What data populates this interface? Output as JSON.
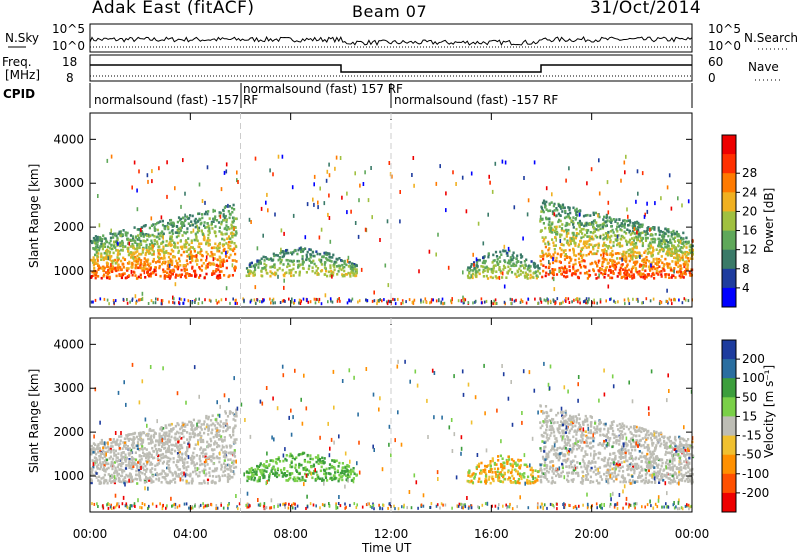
{
  "header": {
    "radar": "Adak East (fitACF)",
    "beam": "Beam 07",
    "date": "31/Oct/2014"
  },
  "noise_panel": {
    "left_label": "N.Sky",
    "right_label": "N.Search",
    "left_ticks": [
      "10^5",
      "10^0"
    ],
    "right_ticks": [
      "10^5",
      "10^0"
    ]
  },
  "freq_panel": {
    "left_label_1": "Freq.",
    "left_label_2": "[MHz]",
    "right_label": "Nave",
    "left_ticks": [
      "18",
      "8"
    ],
    "right_ticks": [
      "60",
      "0"
    ]
  },
  "cpid_panel": {
    "label": "CPID",
    "segments": [
      {
        "text": "normalsound (fast) -157 RF",
        "start_hour": 0,
        "end_hour": 6
      },
      {
        "text": "normalsound (fast) 157 RF",
        "start_hour": 6,
        "end_hour": 12
      },
      {
        "text": "normalsound (fast) -157 RF",
        "start_hour": 12,
        "end_hour": 24
      }
    ]
  },
  "colors": {
    "power_scale": [
      "#0000ff",
      "#1e3c9e",
      "#3a7a68",
      "#5fa85a",
      "#a0c040",
      "#f0b020",
      "#ff7a00",
      "#ff3000",
      "#ee0000"
    ],
    "velocity_scale": [
      "#1e3c9e",
      "#2a6ea0",
      "#3c9e3c",
      "#7ad048",
      "#bdbdb5",
      "#f0c030",
      "#ff9000",
      "#ff5000",
      "#ee0000"
    ],
    "ground_scatter": "#bdbdb5"
  },
  "chart_data": [
    {
      "type": "heatmap",
      "title": "",
      "xlabel": "",
      "ylabel": "Slant Range [km]",
      "xlim": [
        0,
        24
      ],
      "ylim": [
        180,
        4600
      ],
      "x_ticks": [
        "00:00",
        "04:00",
        "08:00",
        "12:00",
        "16:00",
        "20:00",
        "00:00"
      ],
      "y_ticks": [
        1000,
        2000,
        3000,
        4000
      ],
      "colorbar": {
        "label": "Power [dB]",
        "ticks": [
          "4",
          "8",
          "12",
          "16",
          "20",
          "24",
          "28"
        ]
      },
      "regions": [
        {
          "name": "morning-scatter",
          "t_start": 0.0,
          "t_end": 5.8,
          "r_low": 800,
          "r_high": 2500,
          "level": "high"
        },
        {
          "name": "night-echo-1",
          "t_start": 6.2,
          "t_end": 10.6,
          "r_low": 850,
          "r_high": 1500,
          "level": "mid"
        },
        {
          "name": "night-echo-2",
          "t_start": 15.0,
          "t_end": 17.9,
          "r_low": 800,
          "r_high": 1450,
          "level": "mid"
        },
        {
          "name": "evening-scatter",
          "t_start": 17.9,
          "t_end": 24.0,
          "r_low": 800,
          "r_high": 2600,
          "level": "high"
        }
      ]
    },
    {
      "type": "heatmap",
      "title": "",
      "xlabel": "Time UT",
      "ylabel": "Slant Range [km]",
      "xlim": [
        0,
        24
      ],
      "ylim": [
        180,
        4600
      ],
      "x_ticks": [
        "00:00",
        "04:00",
        "08:00",
        "12:00",
        "16:00",
        "20:00",
        "00:00"
      ],
      "y_ticks": [
        1000,
        2000,
        3000,
        4000
      ],
      "colorbar": {
        "label": "Velocity [m s⁻¹]",
        "ticks": [
          "200",
          "100",
          "50",
          "15",
          "-15",
          "-50",
          "-100",
          "-200"
        ]
      },
      "regions": [
        {
          "name": "morning-ground",
          "t_start": 0.0,
          "t_end": 5.8,
          "r_low": 800,
          "r_high": 2500,
          "level": "ground"
        },
        {
          "name": "night-echo-1",
          "t_start": 6.2,
          "t_end": 10.6,
          "r_low": 850,
          "r_high": 1500,
          "level": "positive"
        },
        {
          "name": "night-echo-2",
          "t_start": 15.0,
          "t_end": 17.9,
          "r_low": 800,
          "r_high": 1450,
          "level": "negative"
        },
        {
          "name": "evening-ground",
          "t_start": 17.9,
          "t_end": 24.0,
          "r_low": 800,
          "r_high": 2600,
          "level": "ground"
        }
      ]
    }
  ]
}
